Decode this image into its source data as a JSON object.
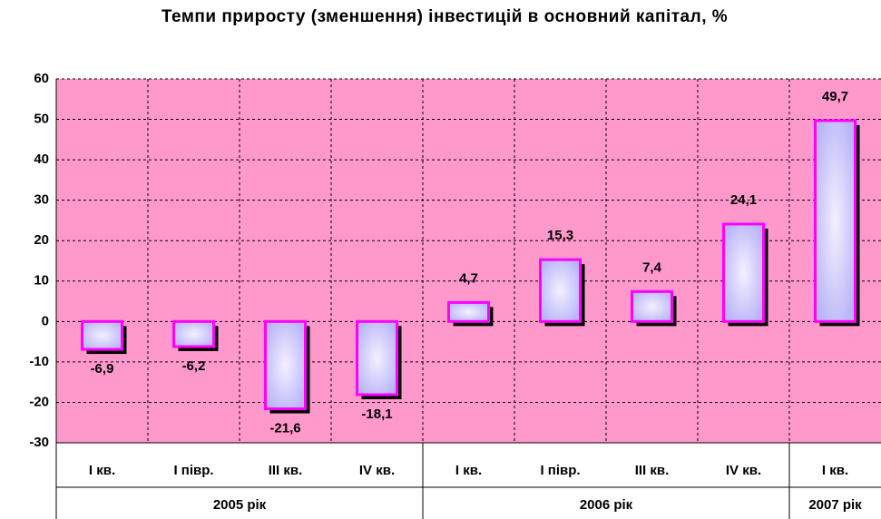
{
  "chart_data": {
    "type": "bar",
    "title": "Темпи приросту (зменшення) інвестицій в основний капітал, %",
    "groups": [
      {
        "name": "2005 рік",
        "categories": [
          "І кв.",
          "І півр.",
          "ІІІ кв.",
          "ІV кв."
        ],
        "values": [
          -6.9,
          -6.2,
          -21.6,
          -18.1
        ],
        "value_labels": [
          "-6,9",
          "-6,2",
          "-21,6",
          "-18,1"
        ]
      },
      {
        "name": "2006 рік",
        "categories": [
          "І кв.",
          "І півр.",
          "ІІІ кв.",
          "ІV кв."
        ],
        "values": [
          4.7,
          15.3,
          7.4,
          24.1
        ],
        "value_labels": [
          "4,7",
          "15,3",
          "7,4",
          "24,1"
        ]
      },
      {
        "name": "2007 рік",
        "categories": [
          "І кв."
        ],
        "values": [
          49.7
        ],
        "value_labels": [
          "49,7"
        ]
      }
    ],
    "color": "#ff00ff",
    "background": "#ff99cc",
    "ylim": [
      -30,
      60
    ],
    "yticks": [
      -30,
      -20,
      -10,
      0,
      10,
      20,
      30,
      40,
      50,
      60
    ],
    "grid": true
  }
}
